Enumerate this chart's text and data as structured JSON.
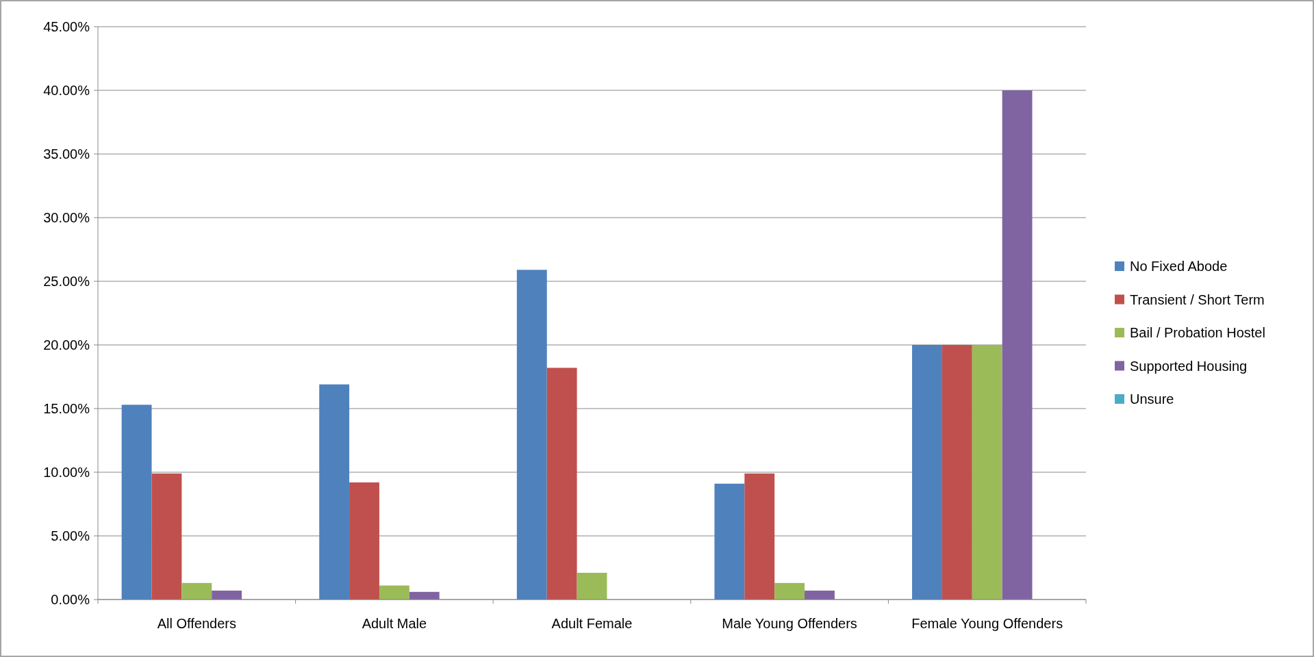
{
  "chart_data": {
    "type": "bar",
    "categories": [
      "All Offenders",
      "Adult Male",
      "Adult Female",
      "Male Young Offenders",
      "Female Young Offenders"
    ],
    "series": [
      {
        "name": "No Fixed Abode",
        "color": "#4f81bd",
        "values": [
          15.3,
          16.9,
          25.9,
          9.1,
          20
        ]
      },
      {
        "name": "Transient / Short Term",
        "color": "#c0504d",
        "values": [
          9.9,
          9.2,
          18.2,
          9.9,
          20
        ]
      },
      {
        "name": "Bail / Probation Hostel",
        "color": "#9bbb59",
        "values": [
          1.3,
          1.1,
          2.1,
          1.3,
          20
        ]
      },
      {
        "name": "Supported Housing",
        "color": "#8064a2",
        "values": [
          0.7,
          0.6,
          0,
          0.7,
          40
        ]
      },
      {
        "name": "Unsure",
        "color": "#4bacc6",
        "values": [
          0,
          0,
          0,
          0,
          0
        ]
      }
    ],
    "ylim": [
      0,
      45
    ],
    "yticks": [
      {
        "value": 0,
        "label": "0.00%"
      },
      {
        "value": 5,
        "label": "5.00%"
      },
      {
        "value": 10,
        "label": "10.00%"
      },
      {
        "value": 15,
        "label": "15.00%"
      },
      {
        "value": 20,
        "label": "20.00%"
      },
      {
        "value": 25,
        "label": "25.00%"
      },
      {
        "value": 30,
        "label": "30.00%"
      },
      {
        "value": 35,
        "label": "35.00%"
      },
      {
        "value": 40,
        "label": "40.00%"
      },
      {
        "value": 45,
        "label": "45.00%"
      }
    ],
    "grid": "y",
    "legend": "right"
  }
}
